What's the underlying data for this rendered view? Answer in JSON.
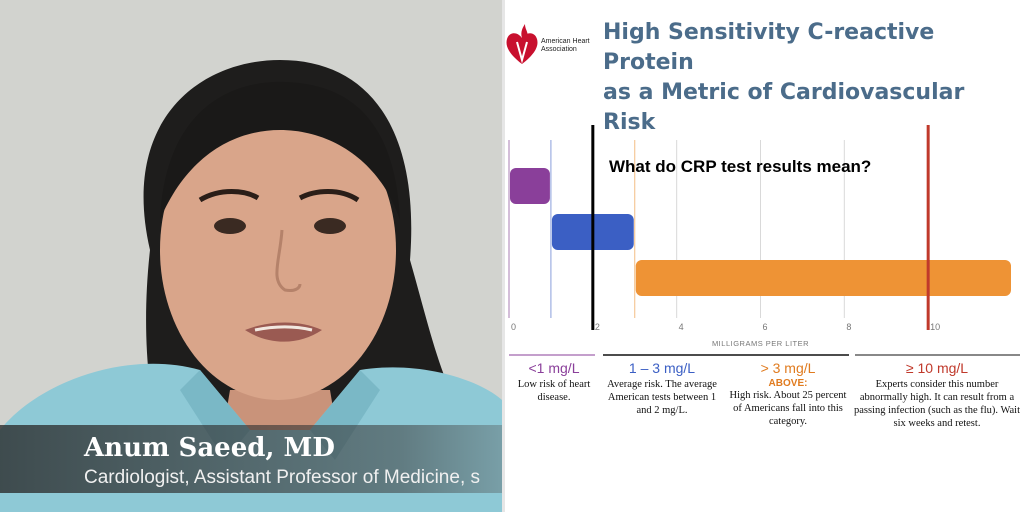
{
  "speaker": {
    "name": "Anum Saeed, MD",
    "title": "Cardiologist, Assistant Professor of Medicine, s"
  },
  "slide": {
    "logo_text": "American Heart Association",
    "title_line1": "High Sensitivity C-reactive Protein",
    "title_line2": "as a Metric of Cardiovascular Risk",
    "question": "What do CRP test results mean?"
  },
  "colors": {
    "low": "#8a3f9a",
    "average": "#3b5fc4",
    "high": "#ee9335",
    "very_high_line": "#c0392b",
    "title": "#4b6c8a",
    "aha_red": "#c8102e"
  },
  "chart_data": {
    "type": "bar",
    "orientation": "horizontal-range",
    "xlabel": "MILLIGRAMS PER LITER",
    "xlim": [
      0,
      12
    ],
    "x_ticks": [
      0,
      2,
      4,
      6,
      8,
      10
    ],
    "x_tick_labels": [
      "0",
      "2",
      "4",
      "6",
      "8",
      "10"
    ],
    "grid": true,
    "ranges": [
      {
        "label": "<1 mg/L",
        "start": 0,
        "end": 1,
        "color": "#8a3f9a"
      },
      {
        "label": "1 – 3 mg/L",
        "start": 1,
        "end": 3,
        "color": "#3b5fc4"
      },
      {
        "label": "> 3 mg/L",
        "start": 3,
        "end": 12,
        "color": "#ee9335"
      }
    ],
    "markers": [
      {
        "value": 2,
        "color": "#000000"
      },
      {
        "value": 10,
        "color": "#c0392b"
      }
    ]
  },
  "categories": [
    {
      "head": "<1 mg/L",
      "head_color": "#8a3f9a",
      "sub": "",
      "desc": "Low risk of heart disease."
    },
    {
      "head": "1 – 3 mg/L",
      "head_color": "#3b5fc4",
      "sub": "",
      "desc": "Average risk. The average American tests between 1 and 2 mg/L."
    },
    {
      "head": "> 3 mg/L",
      "head_color": "#e07b1f",
      "sub": "ABOVE:",
      "desc": "High risk. About 25 percent of Americans fall into this category."
    },
    {
      "head": "≥ 10 mg/L",
      "head_color": "#c0392b",
      "sub": "",
      "desc": "Experts consider this number abnormally high. It can result from a passing infection (such as the flu). Wait six weeks and retest."
    }
  ]
}
